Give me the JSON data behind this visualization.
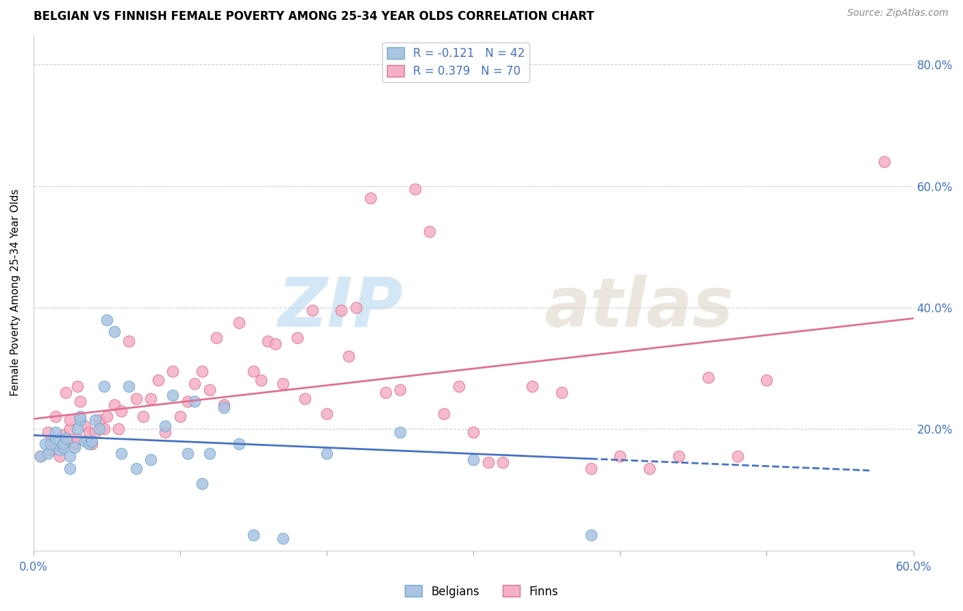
{
  "title": "BELGIAN VS FINNISH FEMALE POVERTY AMONG 25-34 YEAR OLDS CORRELATION CHART",
  "source": "Source: ZipAtlas.com",
  "ylabel": "Female Poverty Among 25-34 Year Olds",
  "xlim": [
    0.0,
    0.6
  ],
  "ylim": [
    0.0,
    0.85
  ],
  "belgian_color": "#aac4e2",
  "finn_color": "#f5b0c5",
  "belgian_edge": "#6fa8d0",
  "finn_edge": "#e07090",
  "trendline_belgian_color": "#4472c4",
  "trendline_finn_color": "#e07090",
  "R_belgian": -0.121,
  "N_belgian": 42,
  "R_finn": 0.379,
  "N_finn": 70,
  "legend_label_belgian": "R = -0.121   N = 42",
  "legend_label_finn": "R = 0.379   N = 70",
  "bottom_legend_belgian": "Belgians",
  "bottom_legend_finn": "Finns",
  "watermark_zip": "ZIP",
  "watermark_atlas": "atlas",
  "belgians_x": [
    0.005,
    0.008,
    0.01,
    0.012,
    0.015,
    0.015,
    0.018,
    0.02,
    0.02,
    0.022,
    0.025,
    0.025,
    0.028,
    0.03,
    0.032,
    0.032,
    0.035,
    0.038,
    0.04,
    0.042,
    0.045,
    0.048,
    0.05,
    0.055,
    0.06,
    0.065,
    0.07,
    0.08,
    0.09,
    0.095,
    0.105,
    0.11,
    0.115,
    0.12,
    0.13,
    0.14,
    0.15,
    0.17,
    0.2,
    0.25,
    0.3,
    0.38
  ],
  "belgians_y": [
    0.155,
    0.175,
    0.16,
    0.175,
    0.185,
    0.195,
    0.165,
    0.17,
    0.175,
    0.185,
    0.135,
    0.155,
    0.17,
    0.2,
    0.215,
    0.22,
    0.18,
    0.175,
    0.18,
    0.215,
    0.2,
    0.27,
    0.38,
    0.36,
    0.16,
    0.27,
    0.135,
    0.15,
    0.205,
    0.255,
    0.16,
    0.245,
    0.11,
    0.16,
    0.235,
    0.175,
    0.025,
    0.02,
    0.16,
    0.195,
    0.15,
    0.025
  ],
  "finns_x": [
    0.005,
    0.01,
    0.012,
    0.015,
    0.018,
    0.02,
    0.022,
    0.025,
    0.025,
    0.028,
    0.03,
    0.03,
    0.032,
    0.035,
    0.038,
    0.04,
    0.042,
    0.045,
    0.048,
    0.05,
    0.055,
    0.058,
    0.06,
    0.065,
    0.07,
    0.075,
    0.08,
    0.085,
    0.09,
    0.095,
    0.1,
    0.105,
    0.11,
    0.115,
    0.12,
    0.125,
    0.13,
    0.14,
    0.15,
    0.155,
    0.16,
    0.165,
    0.17,
    0.18,
    0.185,
    0.19,
    0.2,
    0.21,
    0.215,
    0.22,
    0.23,
    0.24,
    0.25,
    0.26,
    0.27,
    0.28,
    0.29,
    0.3,
    0.31,
    0.32,
    0.34,
    0.36,
    0.38,
    0.4,
    0.42,
    0.44,
    0.46,
    0.48,
    0.5,
    0.58
  ],
  "finns_y": [
    0.155,
    0.195,
    0.165,
    0.22,
    0.155,
    0.19,
    0.26,
    0.2,
    0.215,
    0.175,
    0.185,
    0.27,
    0.245,
    0.205,
    0.195,
    0.175,
    0.195,
    0.215,
    0.2,
    0.22,
    0.24,
    0.2,
    0.23,
    0.345,
    0.25,
    0.22,
    0.25,
    0.28,
    0.195,
    0.295,
    0.22,
    0.245,
    0.275,
    0.295,
    0.265,
    0.35,
    0.24,
    0.375,
    0.295,
    0.28,
    0.345,
    0.34,
    0.275,
    0.35,
    0.25,
    0.395,
    0.225,
    0.395,
    0.32,
    0.4,
    0.58,
    0.26,
    0.265,
    0.595,
    0.525,
    0.225,
    0.27,
    0.195,
    0.145,
    0.145,
    0.27,
    0.26,
    0.135,
    0.155,
    0.135,
    0.155,
    0.285,
    0.155,
    0.28,
    0.64
  ]
}
